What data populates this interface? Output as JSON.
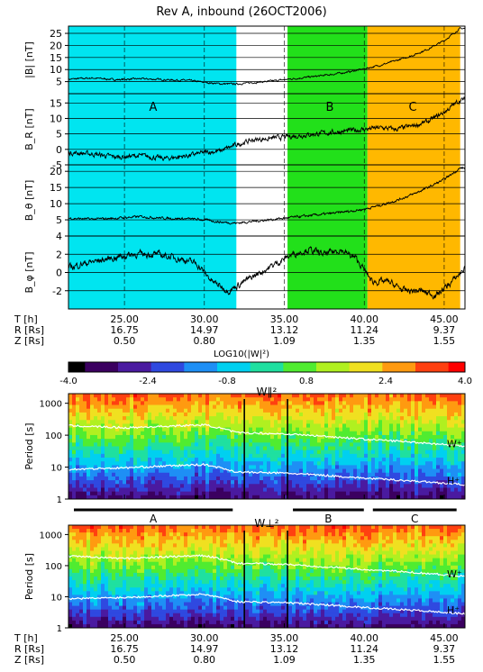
{
  "title": "Rev A, inbound (26OCT2006)",
  "colors": {
    "region_A": "#00e5f0",
    "region_B": "#22e01a",
    "region_C": "#ffb800",
    "trace": "#000000",
    "power_line": "#ffffff"
  },
  "chart_data": [
    {
      "type": "line",
      "ylabel": "|B| [nT]",
      "ylim": [
        0,
        28
      ],
      "yticks": [
        5,
        10,
        15,
        20,
        25
      ],
      "xlim": [
        21.5,
        46.3
      ],
      "grid": true,
      "regions": [
        {
          "label": "A",
          "x": [
            21.5,
            32.0
          ],
          "color": "region_A"
        },
        {
          "label": "B",
          "x": [
            35.2,
            40.2
          ],
          "color": "region_B"
        },
        {
          "label": "C",
          "x": [
            40.2,
            46.0
          ],
          "color": "region_C"
        }
      ],
      "series": [
        {
          "x": [
            21.5,
            23,
            24.5,
            26,
            27.5,
            29,
            30,
            31,
            32,
            33,
            34,
            35,
            36,
            37,
            38,
            39,
            40,
            41,
            42,
            43,
            44,
            45,
            46
          ],
          "y": [
            6,
            6.5,
            5.8,
            6.2,
            5.8,
            5.5,
            4.7,
            4.1,
            4.0,
            4.6,
            5.1,
            5.8,
            6.5,
            7.2,
            8.0,
            9.0,
            10.3,
            11.8,
            13.7,
            15.8,
            18.5,
            22,
            27
          ]
        }
      ]
    },
    {
      "type": "line",
      "ylabel": "B_R [nT]",
      "ylim": [
        -5,
        18
      ],
      "yticks": [
        -5,
        0,
        5,
        10,
        15
      ],
      "xlim": [
        21.5,
        46.3
      ],
      "grid": true,
      "annotations": [
        "A",
        "B",
        "C"
      ],
      "series": [
        {
          "x": [
            21.5,
            23,
            24.5,
            26,
            27.5,
            29,
            30,
            31,
            32,
            33,
            34,
            35,
            36,
            37,
            38,
            39,
            40,
            41,
            42,
            43,
            44,
            45,
            46
          ],
          "y": [
            -1,
            -1.5,
            -2.5,
            -2,
            -3,
            -2,
            -1,
            -0.5,
            1.5,
            3,
            3.5,
            4,
            4.5,
            5,
            5.5,
            6,
            6.5,
            7,
            6.5,
            7.5,
            9,
            12,
            16
          ]
        }
      ]
    },
    {
      "type": "line",
      "ylabel": "B_θ [nT]",
      "ylim": [
        0,
        22
      ],
      "yticks": [
        5,
        10,
        15,
        20
      ],
      "xlim": [
        21.5,
        46.3
      ],
      "grid": true,
      "series": [
        {
          "x": [
            21.5,
            23,
            24.5,
            26,
            27.5,
            29,
            30,
            31,
            32,
            33,
            34,
            35,
            36,
            37,
            38,
            39,
            40,
            41,
            42,
            43,
            44,
            45,
            46
          ],
          "y": [
            5.5,
            5.2,
            5.5,
            6,
            5.5,
            5.3,
            5,
            4.3,
            4.0,
            4.5,
            5,
            5.5,
            6,
            6.5,
            7,
            7.6,
            8.3,
            9.5,
            11,
            12.8,
            15,
            17.5,
            21
          ]
        }
      ]
    },
    {
      "type": "line",
      "ylabel": "B_φ [nT]",
      "ylim": [
        -4,
        4
      ],
      "yticks": [
        -2,
        0,
        2,
        4
      ],
      "xlim": [
        21.5,
        46.3
      ],
      "grid": true,
      "series": [
        {
          "x": [
            21.5,
            22.5,
            24,
            25.5,
            27,
            28.5,
            29.5,
            30.5,
            31.5,
            32.5,
            33.5,
            34.5,
            35.5,
            36.5,
            37.5,
            38.5,
            39.5,
            40.5,
            41.5,
            42.5,
            43.5,
            44.5,
            45.5,
            46.3
          ],
          "y": [
            0.5,
            1,
            1.5,
            2,
            2,
            1.5,
            1,
            -1,
            -2,
            -1,
            0,
            1,
            2,
            2.5,
            2,
            2.5,
            1.5,
            -1,
            -1,
            -2,
            -2,
            -2.5,
            -1,
            0.5
          ]
        }
      ]
    },
    {
      "type": "heatmap",
      "colorbar": {
        "label": "LOG10(|W|²)",
        "range": [
          -4.0,
          4.0
        ],
        "ticks": [
          -4.0,
          -2.4,
          -0.8,
          0.8,
          2.4,
          4.0
        ]
      },
      "panel_label": "W∥²",
      "ylabel": "Period [s]",
      "yscale": "log",
      "ylim": [
        1,
        2000
      ],
      "yticks": [
        1,
        10,
        100,
        1000
      ],
      "xlim": [
        21.5,
        46.3
      ],
      "lines": [
        {
          "name": "W⁺",
          "x": [
            21.5,
            25,
            30,
            32,
            35,
            40,
            46.3
          ],
          "y": [
            200,
            170,
            210,
            120,
            110,
            75,
            45
          ]
        },
        {
          "name": "H⁺",
          "x": [
            21.5,
            25,
            30,
            32,
            35,
            40,
            46.3
          ],
          "y": [
            8.5,
            9.5,
            12,
            7,
            6.5,
            4.5,
            2.8
          ]
        }
      ]
    },
    {
      "type": "heatmap",
      "panel_label": "W⊥²",
      "ylabel": "Period [s]",
      "yscale": "log",
      "ylim": [
        1,
        2000
      ],
      "yticks": [
        1,
        10,
        100,
        1000
      ],
      "xlim": [
        21.5,
        46.3
      ],
      "region_bar": [
        {
          "label": "A",
          "x": [
            21.5,
            32.0
          ]
        },
        {
          "label": "B",
          "x": [
            35.2,
            40.2
          ]
        },
        {
          "label": "C",
          "x": [
            40.2,
            46.0
          ]
        }
      ],
      "lines": [
        {
          "name": "W⁺",
          "x": [
            21.5,
            25,
            30,
            32,
            35,
            40,
            46.3
          ],
          "y": [
            200,
            170,
            210,
            120,
            110,
            75,
            45
          ]
        },
        {
          "name": "H⁺",
          "x": [
            21.5,
            25,
            30,
            32,
            35,
            40,
            46.3
          ],
          "y": [
            8.5,
            9.5,
            12,
            7,
            6.5,
            4.5,
            2.8
          ]
        }
      ]
    }
  ],
  "ephemeris": {
    "row_labels": [
      "T  [h]",
      "R  [Rs]",
      "Z  [Rs]"
    ],
    "columns": [
      {
        "T": "25.00",
        "R": "16.75",
        "Z": "0.50"
      },
      {
        "T": "30.00",
        "R": "14.97",
        "Z": "0.80"
      },
      {
        "T": "35.00",
        "R": "13.12",
        "Z": "1.09"
      },
      {
        "T": "40.00",
        "R": "11.24",
        "Z": "1.35"
      },
      {
        "T": "45.00",
        "R": "9.37",
        "Z": "1.55"
      }
    ]
  }
}
